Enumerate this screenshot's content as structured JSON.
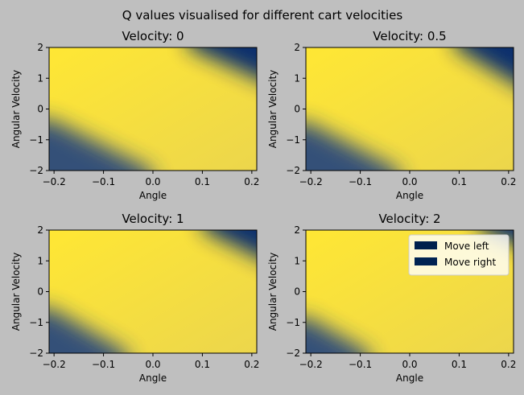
{
  "figure": {
    "suptitle": "Q values visualised for different cart velocities",
    "background": "#bfbfbf"
  },
  "colors": {
    "high": "#ffe734",
    "low": "#00286f",
    "left_legend": "#00204c",
    "right_legend": "#002352"
  },
  "chart_data": [
    {
      "type": "heatmap",
      "title": "Velocity: 0",
      "xlabel": "Angle",
      "ylabel": "Angular Velocity",
      "xlim": [
        -0.21,
        0.21
      ],
      "ylim": [
        -2,
        2
      ],
      "xticks": [
        -0.2,
        -0.1,
        0.0,
        0.1,
        0.2
      ],
      "xtick_labels": [
        "−0.2",
        "−0.1",
        "0.0",
        "0.1",
        "0.2"
      ],
      "yticks": [
        -2,
        -1,
        0,
        1,
        2
      ],
      "ytick_labels": [
        "−2",
        "−1",
        "0",
        "1",
        "2"
      ],
      "boundary_low": {
        "x": [
          -0.21,
          0.0
        ],
        "y": [
          -0.3,
          -2.0
        ]
      },
      "boundary_high": {
        "x": [
          0.07,
          0.21
        ],
        "y": [
          2.0,
          0.8
        ]
      },
      "legend": null
    },
    {
      "type": "heatmap",
      "title": "Velocity: 0.5",
      "xlabel": "Angle",
      "ylabel": "Angular Velocity",
      "xlim": [
        -0.21,
        0.21
      ],
      "ylim": [
        -2,
        2
      ],
      "xticks": [
        -0.2,
        -0.1,
        0.0,
        0.1,
        0.2
      ],
      "xtick_labels": [
        "−0.2",
        "−0.1",
        "0.0",
        "0.1",
        "0.2"
      ],
      "yticks": [
        -2,
        -1,
        0,
        1,
        2
      ],
      "ytick_labels": [
        "−2",
        "−1",
        "0",
        "1",
        "2"
      ],
      "boundary_low": {
        "x": [
          -0.21,
          -0.02
        ],
        "y": [
          -0.4,
          -2.0
        ]
      },
      "boundary_high": {
        "x": [
          0.09,
          0.21
        ],
        "y": [
          2.0,
          0.5
        ]
      },
      "legend": null
    },
    {
      "type": "heatmap",
      "title": "Velocity: 1",
      "xlabel": "Angle",
      "ylabel": "Angular Velocity",
      "xlim": [
        -0.21,
        0.21
      ],
      "ylim": [
        -2,
        2
      ],
      "xticks": [
        -0.2,
        -0.1,
        0.0,
        0.1,
        0.2
      ],
      "xtick_labels": [
        "−0.2",
        "−0.1",
        "0.0",
        "0.1",
        "0.2"
      ],
      "yticks": [
        -2,
        -1,
        0,
        1,
        2
      ],
      "ytick_labels": [
        "−2",
        "−1",
        "0",
        "1",
        "2"
      ],
      "boundary_low": {
        "x": [
          -0.21,
          -0.05
        ],
        "y": [
          -0.5,
          -2.0
        ]
      },
      "boundary_high": {
        "x": [
          0.1,
          0.21
        ],
        "y": [
          2.0,
          0.9
        ]
      },
      "legend": null
    },
    {
      "type": "heatmap",
      "title": "Velocity: 2",
      "xlabel": "Angle",
      "ylabel": "Angular Velocity",
      "xlim": [
        -0.21,
        0.21
      ],
      "ylim": [
        -2,
        2
      ],
      "xticks": [
        -0.2,
        -0.1,
        0.0,
        0.1,
        0.2
      ],
      "xtick_labels": [
        "−0.2",
        "−0.1",
        "0.0",
        "0.1",
        "0.2"
      ],
      "yticks": [
        -2,
        -1,
        0,
        1,
        2
      ],
      "ytick_labels": [
        "−2",
        "−1",
        "0",
        "1",
        "2"
      ],
      "boundary_low": {
        "x": [
          -0.21,
          -0.08
        ],
        "y": [
          -0.8,
          -2.0
        ]
      },
      "boundary_high": {
        "x": [
          0.14,
          0.21
        ],
        "y": [
          2.0,
          1.4
        ]
      },
      "legend": {
        "placement": "top-right",
        "entries": [
          "Move left",
          "Move right"
        ]
      }
    }
  ]
}
